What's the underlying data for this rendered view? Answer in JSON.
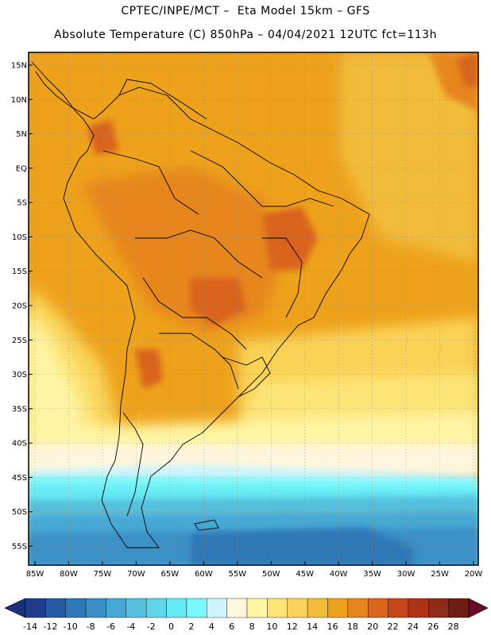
{
  "header": {
    "title_line1": "CPTEC/INPE/MCT –  Eta Model 15km – GFS",
    "title_line2": "Absolute Temperature (C) 850hPa – 04/04/2021 12UTC fct=113h"
  },
  "map": {
    "lat_labels": [
      "15N",
      "10N",
      "5N",
      "EQ",
      "5S",
      "10S",
      "15S",
      "20S",
      "25S",
      "30S",
      "35S",
      "40S",
      "45S",
      "50S",
      "55S"
    ],
    "lon_labels": [
      "85W",
      "80W",
      "75W",
      "70W",
      "65W",
      "60W",
      "55W",
      "50W",
      "45W",
      "40W",
      "35W",
      "30W",
      "25W",
      "20W"
    ]
  },
  "colorbar": {
    "unit": "C",
    "ticks": [
      "-14",
      "-12",
      "-10",
      "-8",
      "-6",
      "-4",
      "-2",
      "0",
      "2",
      "4",
      "6",
      "8",
      "10",
      "12",
      "14",
      "16",
      "18",
      "20",
      "22",
      "24",
      "26",
      "28"
    ],
    "colors": [
      "#1f3d8c",
      "#255aa5",
      "#2d78b8",
      "#3a90c6",
      "#46a8d4",
      "#55c0de",
      "#5fd6ea",
      "#66eaf4",
      "#7af7fa",
      "#cdf5fb",
      "#fff6dd",
      "#fff5a5",
      "#fde477",
      "#f9d257",
      "#f2bc3b",
      "#eea21c",
      "#e6861c",
      "#d9641b",
      "#c8461c",
      "#ad3217",
      "#8f2a18",
      "#6e1c14"
    ],
    "underflow_color": "#1c2f7a",
    "overflow_color": "#6a0a2a"
  }
}
